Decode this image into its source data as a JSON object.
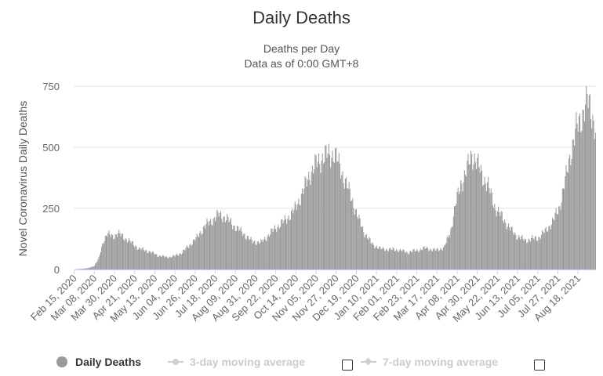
{
  "chart_data": {
    "type": "bar",
    "title": "Daily Deaths",
    "subtitle_lines": [
      "Deaths per Day",
      "Data as of 0:00 GMT+8"
    ],
    "ylabel": "Novel Coronavirus Daily Deaths",
    "xlabel": "",
    "ylim": [
      0,
      750
    ],
    "yticks": [
      0,
      250,
      500,
      750
    ],
    "grid": true,
    "legend_position": "bottom",
    "bar_color": "#999999",
    "x_start": "2020-02-15",
    "x_end": "2021-09-06",
    "x_tick_labels": [
      "Feb 15, 2020",
      "Mar 08, 2020",
      "Mar 30, 2020",
      "Apr 21, 2020",
      "May 13, 2020",
      "Jun 04, 2020",
      "Jun 26, 2020",
      "Jul 18, 2020",
      "Aug 09, 2020",
      "Aug 31, 2020",
      "Sep 22, 2020",
      "Oct 14, 2020",
      "Nov 05, 2020",
      "Nov 27, 2020",
      "Dec 19, 2020",
      "Jan 10, 2021",
      "Feb 01, 2021",
      "Feb 23, 2021",
      "Mar 17, 2021",
      "Apr 08, 2021",
      "Apr 30, 2021",
      "May 22, 2021",
      "Jun 13, 2021",
      "Jul 05, 2021",
      "Jul 27, 2021",
      "Aug 18, 2021"
    ],
    "series_points": [
      [
        "2020-02-15",
        0
      ],
      [
        "2020-03-01",
        5
      ],
      [
        "2020-03-08",
        15
      ],
      [
        "2020-03-13",
        45
      ],
      [
        "2020-03-18",
        120
      ],
      [
        "2020-03-22",
        145
      ],
      [
        "2020-03-28",
        135
      ],
      [
        "2020-04-03",
        148
      ],
      [
        "2020-04-10",
        130
      ],
      [
        "2020-04-18",
        108
      ],
      [
        "2020-04-26",
        85
      ],
      [
        "2020-05-06",
        75
      ],
      [
        "2020-05-16",
        58
      ],
      [
        "2020-05-26",
        50
      ],
      [
        "2020-06-04",
        55
      ],
      [
        "2020-06-12",
        70
      ],
      [
        "2020-06-20",
        100
      ],
      [
        "2020-06-28",
        130
      ],
      [
        "2020-07-06",
        175
      ],
      [
        "2020-07-14",
        200
      ],
      [
        "2020-07-22",
        225
      ],
      [
        "2020-07-30",
        210
      ],
      [
        "2020-08-07",
        180
      ],
      [
        "2020-08-17",
        150
      ],
      [
        "2020-08-27",
        115
      ],
      [
        "2020-09-06",
        110
      ],
      [
        "2020-09-14",
        140
      ],
      [
        "2020-09-22",
        170
      ],
      [
        "2020-10-02",
        200
      ],
      [
        "2020-10-12",
        240
      ],
      [
        "2020-10-22",
        320
      ],
      [
        "2020-10-29",
        390
      ],
      [
        "2020-11-05",
        430
      ],
      [
        "2020-11-12",
        460
      ],
      [
        "2020-11-19",
        470
      ],
      [
        "2020-11-25",
        475
      ],
      [
        "2020-12-01",
        420
      ],
      [
        "2020-12-07",
        360
      ],
      [
        "2020-12-14",
        290
      ],
      [
        "2020-12-21",
        210
      ],
      [
        "2020-12-28",
        150
      ],
      [
        "2021-01-05",
        105
      ],
      [
        "2021-01-14",
        85
      ],
      [
        "2021-01-24",
        82
      ],
      [
        "2021-02-03",
        80
      ],
      [
        "2021-02-13",
        70
      ],
      [
        "2021-02-23",
        78
      ],
      [
        "2021-03-05",
        88
      ],
      [
        "2021-03-15",
        78
      ],
      [
        "2021-03-25",
        90
      ],
      [
        "2021-04-01",
        160
      ],
      [
        "2021-04-06",
        260
      ],
      [
        "2021-04-12",
        350
      ],
      [
        "2021-04-18",
        400
      ],
      [
        "2021-04-24",
        470
      ],
      [
        "2021-04-28",
        450
      ],
      [
        "2021-05-05",
        390
      ],
      [
        "2021-05-12",
        340
      ],
      [
        "2021-05-20",
        250
      ],
      [
        "2021-05-28",
        210
      ],
      [
        "2021-06-05",
        165
      ],
      [
        "2021-06-13",
        135
      ],
      [
        "2021-06-21",
        120
      ],
      [
        "2021-06-29",
        125
      ],
      [
        "2021-07-06",
        130
      ],
      [
        "2021-07-14",
        160
      ],
      [
        "2021-07-22",
        200
      ],
      [
        "2021-07-29",
        260
      ],
      [
        "2021-08-04",
        360
      ],
      [
        "2021-08-10",
        480
      ],
      [
        "2021-08-16",
        570
      ],
      [
        "2021-08-22",
        630
      ],
      [
        "2021-08-28",
        690
      ],
      [
        "2021-09-01",
        660
      ],
      [
        "2021-09-06",
        575
      ]
    ]
  },
  "legend": [
    {
      "label": "Daily Deaths",
      "active": true,
      "color": "#999999"
    },
    {
      "label": "3-day moving average",
      "active": false
    },
    {
      "label": "7-day moving average",
      "active": false
    }
  ]
}
